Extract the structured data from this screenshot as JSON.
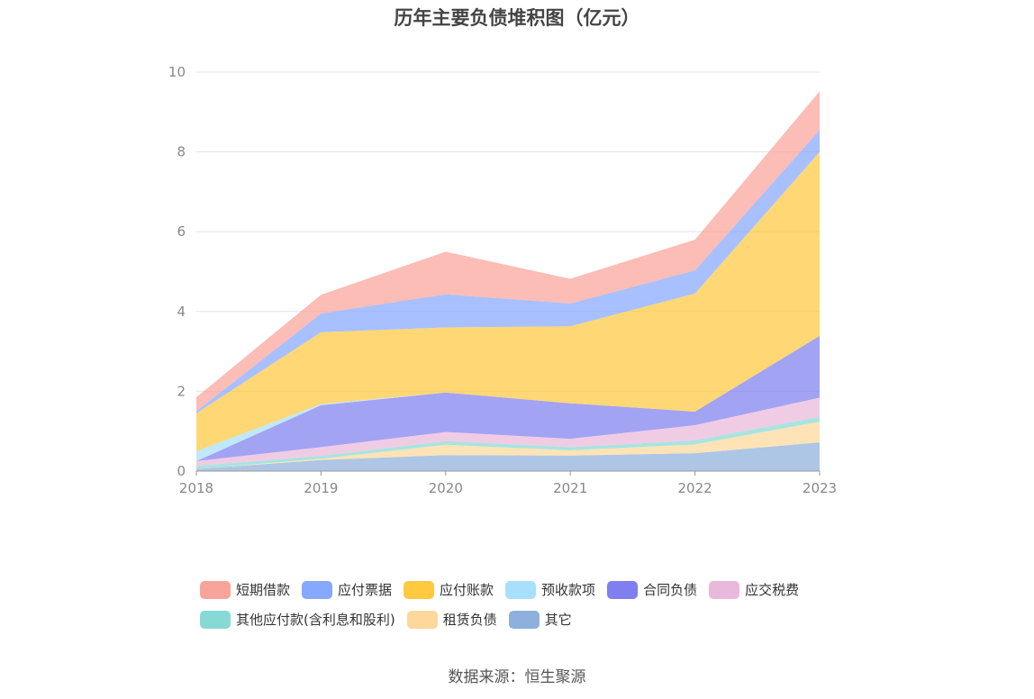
{
  "chart_data": {
    "type": "area",
    "stacked": true,
    "title": "历年主要负债堆积图（亿元）",
    "x": [
      "2018",
      "2019",
      "2020",
      "2021",
      "2022",
      "2023"
    ],
    "y_ticks": [
      "0",
      "2",
      "4",
      "6",
      "8",
      "10"
    ],
    "ylim": [
      0,
      10
    ],
    "grid": true,
    "legend_position": "bottom",
    "series": [
      {
        "name": "其它",
        "color": "#8fb0dd",
        "values": [
          0.05,
          0.28,
          0.4,
          0.39,
          0.45,
          0.72
        ]
      },
      {
        "name": "租赁负债",
        "color": "#fdd89a",
        "values": [
          0.0,
          0.03,
          0.26,
          0.13,
          0.22,
          0.52
        ]
      },
      {
        "name": "其他应付款(含利息和股利)",
        "color": "#86d9d4",
        "values": [
          0.08,
          0.07,
          0.09,
          0.08,
          0.1,
          0.12
        ]
      },
      {
        "name": "应交税费",
        "color": "#eab8da",
        "values": [
          0.12,
          0.22,
          0.23,
          0.21,
          0.38,
          0.48
        ]
      },
      {
        "name": "合同负债",
        "color": "#7f7ff0",
        "values": [
          0.0,
          1.05,
          0.99,
          0.89,
          0.34,
          1.55
        ]
      },
      {
        "name": "预收款项",
        "color": "#a8dffa",
        "values": [
          0.25,
          0.03,
          0.0,
          0.0,
          0.0,
          0.0
        ]
      },
      {
        "name": "应付账款",
        "color": "#ffc940",
        "values": [
          0.95,
          1.8,
          1.63,
          1.93,
          2.96,
          4.61
        ]
      },
      {
        "name": "应付票据",
        "color": "#86a8ff",
        "values": [
          0.05,
          0.47,
          0.83,
          0.57,
          0.58,
          0.55
        ]
      },
      {
        "name": "短期借款",
        "color": "#f9a49a",
        "values": [
          0.35,
          0.47,
          1.07,
          0.62,
          0.77,
          0.97
        ]
      }
    ]
  },
  "legend": {
    "row1": [
      {
        "label": "短期借款",
        "color": "#f9a49a"
      },
      {
        "label": "应付票据",
        "color": "#86a8ff"
      },
      {
        "label": "应付账款",
        "color": "#ffc940"
      },
      {
        "label": "预收款项",
        "color": "#a8dffa"
      },
      {
        "label": "合同负债",
        "color": "#7f7ff0"
      },
      {
        "label": "应交税费",
        "color": "#eab8da"
      }
    ],
    "row2": [
      {
        "label": "其他应付款(含利息和股利)",
        "color": "#86d9d4"
      },
      {
        "label": "租赁负债",
        "color": "#fdd89a"
      },
      {
        "label": "其它",
        "color": "#8fb0dd"
      }
    ]
  },
  "source": "数据来源：恒生聚源"
}
